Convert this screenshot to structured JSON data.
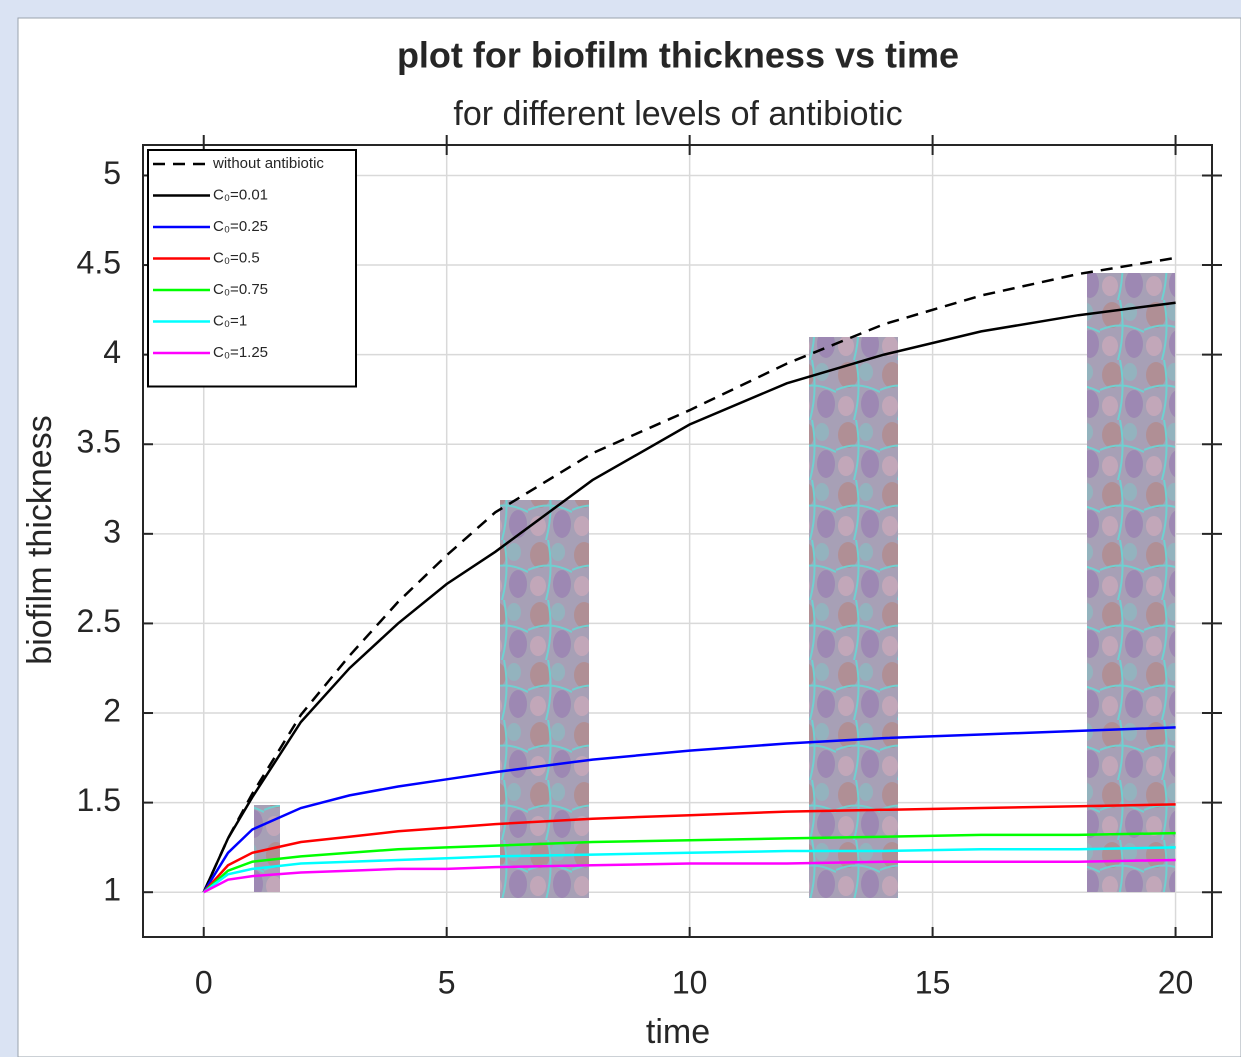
{
  "chart_data": {
    "type": "line",
    "title": "plot for biofilm thickness vs time",
    "subtitle": "for different levels of antibiotic",
    "x_label": "time",
    "y_label": "biofilm thickness",
    "x": [
      0,
      0.5,
      1,
      2,
      3,
      4,
      5,
      6,
      8,
      10,
      12,
      14,
      16,
      18,
      20
    ],
    "series": [
      {
        "name": "without antibiotic",
        "color": "#000000",
        "linestyle": "dashed",
        "values": [
          1,
          1.3,
          1.55,
          1.99,
          2.32,
          2.62,
          2.88,
          3.12,
          3.45,
          3.69,
          3.95,
          4.17,
          4.33,
          4.45,
          4.54
        ]
      },
      {
        "name": "C₀=0.01",
        "color": "#000000",
        "linestyle": "solid",
        "values": [
          1,
          1.3,
          1.53,
          1.95,
          2.25,
          2.5,
          2.72,
          2.9,
          3.3,
          3.61,
          3.84,
          4.0,
          4.13,
          4.22,
          4.29
        ]
      },
      {
        "name": "C₀=0.25",
        "color": "#0000ff",
        "linestyle": "solid",
        "values": [
          1,
          1.22,
          1.35,
          1.47,
          1.54,
          1.59,
          1.63,
          1.67,
          1.74,
          1.79,
          1.83,
          1.86,
          1.88,
          1.9,
          1.92
        ]
      },
      {
        "name": "C₀=0.5",
        "color": "#ff0000",
        "linestyle": "solid",
        "values": [
          1,
          1.15,
          1.22,
          1.28,
          1.31,
          1.34,
          1.36,
          1.38,
          1.41,
          1.43,
          1.45,
          1.46,
          1.47,
          1.48,
          1.49
        ]
      },
      {
        "name": "C₀=0.75",
        "color": "#00ff00",
        "linestyle": "solid",
        "values": [
          1,
          1.12,
          1.17,
          1.2,
          1.22,
          1.24,
          1.25,
          1.26,
          1.28,
          1.29,
          1.3,
          1.31,
          1.32,
          1.32,
          1.33
        ]
      },
      {
        "name": "C₀=1",
        "color": "#00ffff",
        "linestyle": "solid",
        "values": [
          1,
          1.1,
          1.13,
          1.16,
          1.17,
          1.18,
          1.19,
          1.2,
          1.21,
          1.22,
          1.23,
          1.23,
          1.24,
          1.24,
          1.25
        ]
      },
      {
        "name": "C₀=1.25",
        "color": "#ff00ff",
        "linestyle": "solid",
        "values": [
          1,
          1.07,
          1.09,
          1.11,
          1.12,
          1.13,
          1.13,
          1.14,
          1.15,
          1.16,
          1.16,
          1.17,
          1.17,
          1.17,
          1.18
        ]
      }
    ],
    "xlim": [
      -1.25,
      20.75
    ],
    "xticks": [
      0,
      5,
      10,
      15,
      20
    ],
    "ylim": [
      0.75,
      5.17
    ],
    "yticks": [
      1,
      1.5,
      2,
      2.5,
      3,
      3.5,
      4,
      4.5,
      5
    ],
    "grid": true,
    "legend": "upper-left"
  }
}
